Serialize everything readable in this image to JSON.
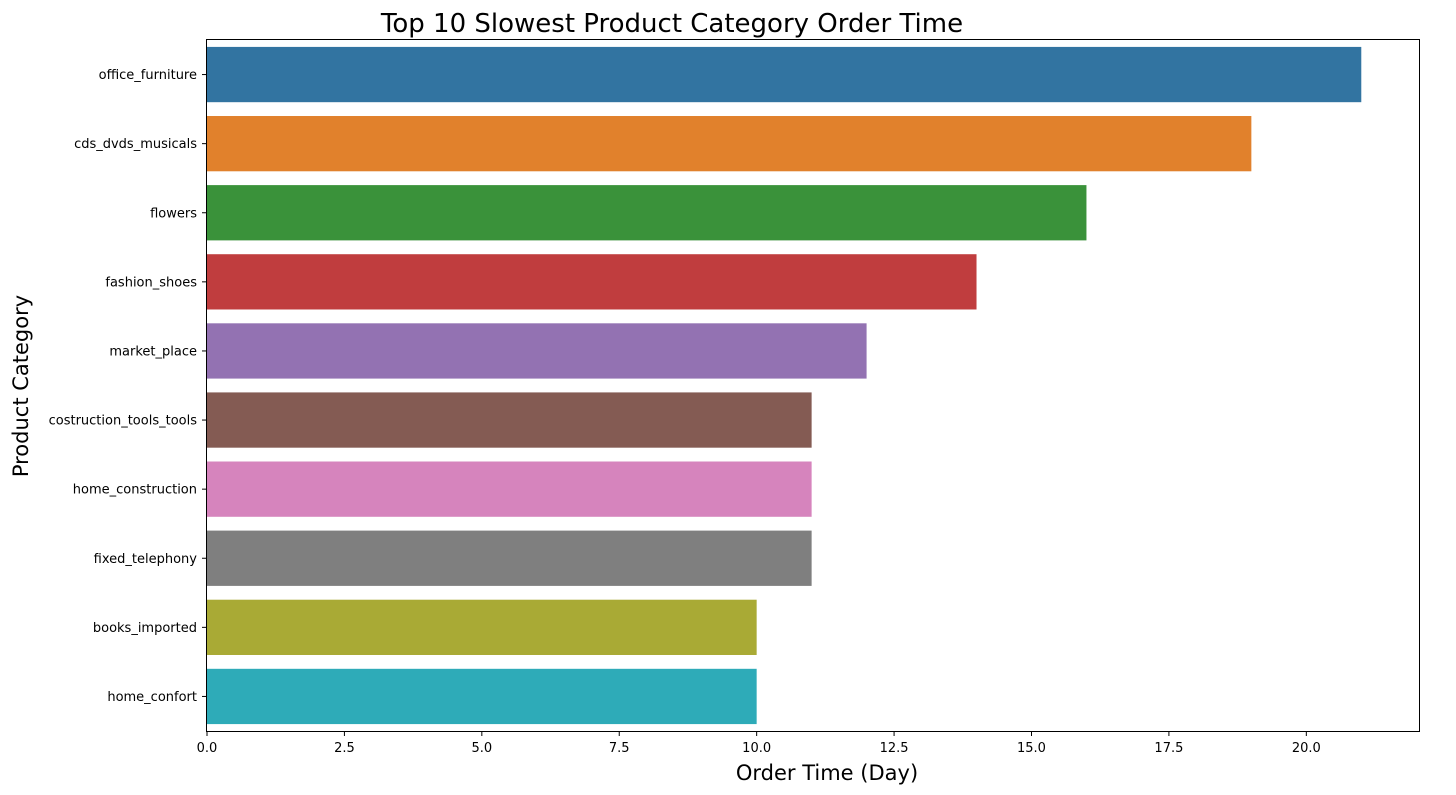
{
  "chart_data": {
    "type": "bar",
    "orientation": "horizontal",
    "title": "Top 10 Slowest Product Category Order Time",
    "xlabel": "Order Time (Day)",
    "ylabel": "Product Category",
    "categories": [
      "office_furniture",
      "cds_dvds_musicals",
      "flowers",
      "fashion_shoes",
      "market_place",
      "costruction_tools_tools",
      "home_construction",
      "fixed_telephony",
      "books_imported",
      "home_confort"
    ],
    "values": [
      21,
      19,
      16,
      14,
      12,
      11,
      11,
      11,
      10,
      10
    ],
    "colors": [
      "#3274a1",
      "#e1812c",
      "#3a923a",
      "#c03d3e",
      "#9372b2",
      "#845b53",
      "#d684bd",
      "#7f7f7f",
      "#a9aa35",
      "#2eabb8"
    ],
    "xlim": [
      0,
      22.05
    ],
    "xticks": [
      0.0,
      2.5,
      5.0,
      7.5,
      10.0,
      12.5,
      15.0,
      17.5,
      20.0
    ],
    "xtick_labels": [
      "0.0",
      "2.5",
      "5.0",
      "7.5",
      "10.0",
      "12.5",
      "15.0",
      "17.5",
      "20.0"
    ],
    "grid": false,
    "legend": "none"
  }
}
